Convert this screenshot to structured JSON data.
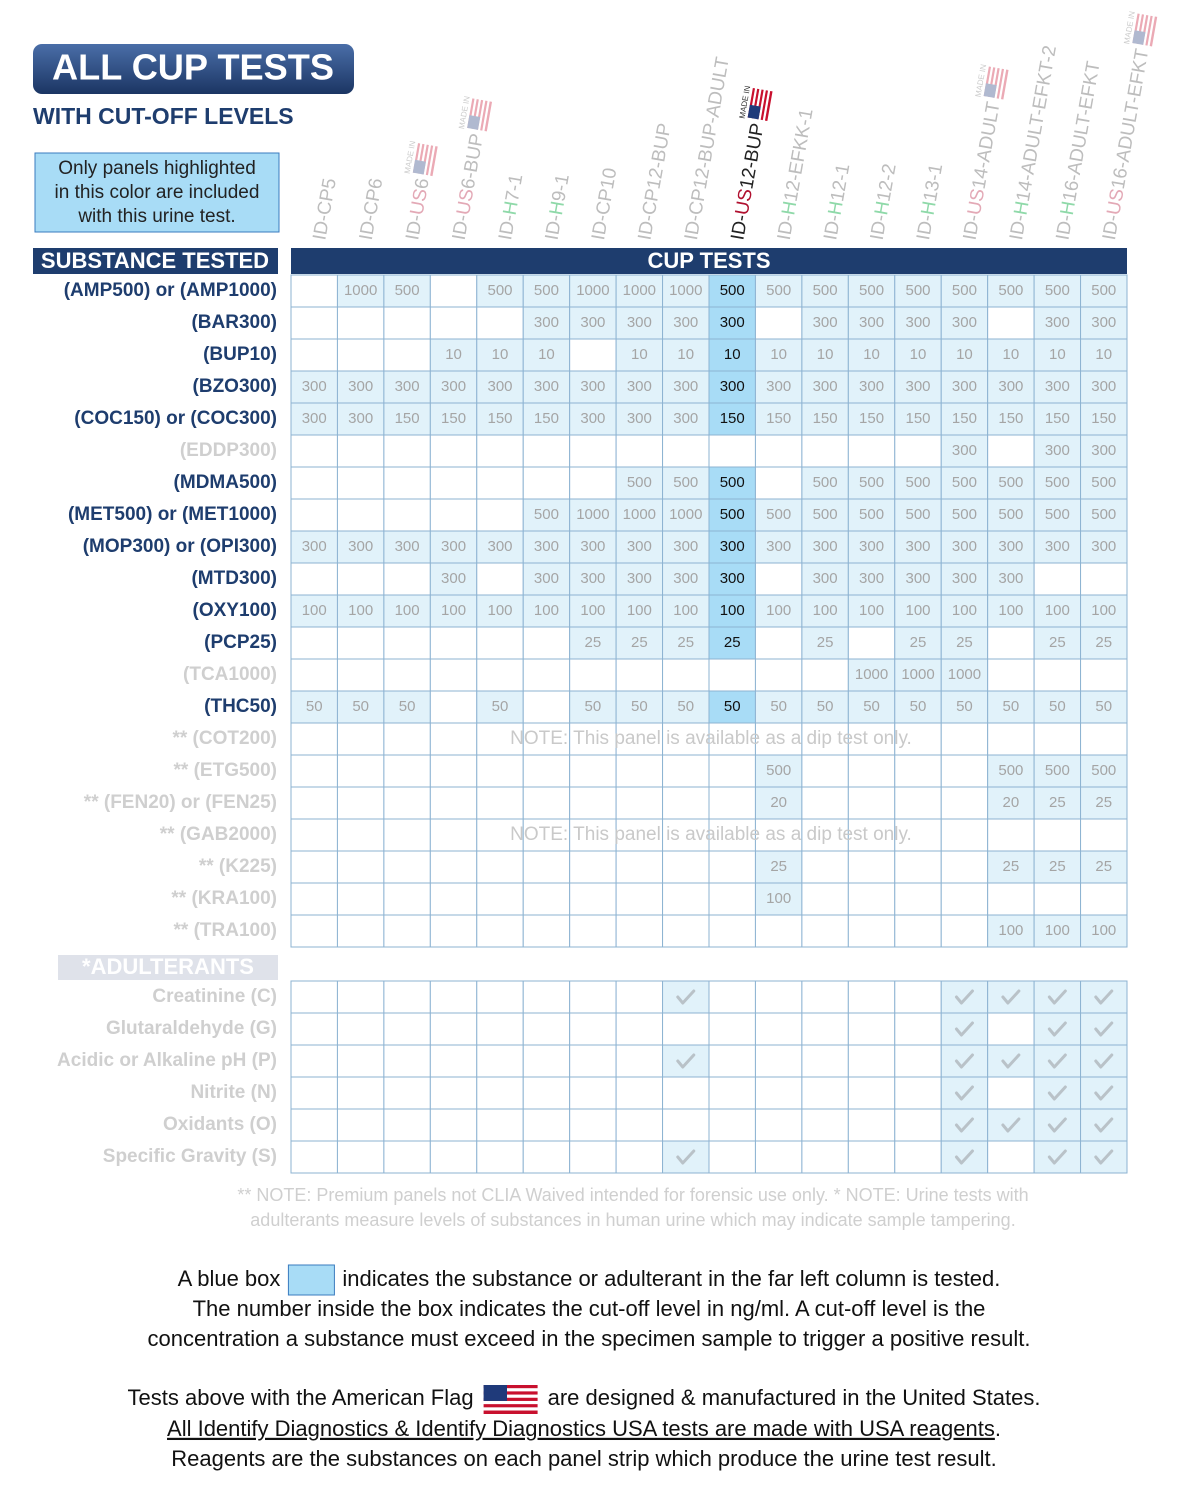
{
  "header": {
    "title": "ALL CUP TESTS",
    "subtitle": "WITH CUT-OFF LEVELS",
    "legend_lines": [
      "Only panels highlighted",
      "in this color are included",
      "with this urine test."
    ]
  },
  "table": {
    "substance_header": "SUBSTANCE TESTED",
    "cup_header": "CUP TESTS",
    "made_in_label": "MADE IN",
    "highlight_column": 9,
    "columns": [
      {
        "label": "ID-CP5"
      },
      {
        "label": "ID-CP6"
      },
      {
        "label": "ID-US6",
        "made_in": true
      },
      {
        "label": "ID-US6-BUP",
        "made_in": true
      },
      {
        "label": "ID-H7-1"
      },
      {
        "label": "ID-H9-1"
      },
      {
        "label": "ID-CP10"
      },
      {
        "label": "ID-CP12-BUP"
      },
      {
        "label": "ID-CP12-BUP-ADULT"
      },
      {
        "label": "ID-US12-BUP",
        "made_in": true
      },
      {
        "label": "ID-H12-EFKK-1"
      },
      {
        "label": "ID-H12-1"
      },
      {
        "label": "ID-H12-2"
      },
      {
        "label": "ID-H13-1"
      },
      {
        "label": "ID-US14-ADULT",
        "made_in": true
      },
      {
        "label": "ID-H14-ADULT-EFKT-2"
      },
      {
        "label": "ID-H16-ADULT-EFKT"
      },
      {
        "label": "ID-US16-ADULT-EFKT",
        "made_in": true
      }
    ],
    "rows": [
      {
        "label": "(AMP500) or (AMP1000)",
        "values": [
          null,
          1000,
          500,
          null,
          500,
          500,
          1000,
          1000,
          1000,
          500,
          500,
          500,
          500,
          500,
          500,
          500,
          500,
          500
        ]
      },
      {
        "label": "(BAR300)",
        "values": [
          null,
          null,
          null,
          null,
          null,
          300,
          300,
          300,
          300,
          300,
          null,
          300,
          300,
          300,
          300,
          null,
          300,
          300
        ]
      },
      {
        "label": "(BUP10)",
        "values": [
          null,
          null,
          null,
          10,
          10,
          10,
          null,
          10,
          10,
          10,
          10,
          10,
          10,
          10,
          10,
          10,
          10,
          10
        ]
      },
      {
        "label": "(BZO300)",
        "values": [
          300,
          300,
          300,
          300,
          300,
          300,
          300,
          300,
          300,
          300,
          300,
          300,
          300,
          300,
          300,
          300,
          300,
          300
        ]
      },
      {
        "label": "(COC150) or (COC300)",
        "values": [
          300,
          300,
          150,
          150,
          150,
          150,
          300,
          300,
          300,
          150,
          150,
          150,
          150,
          150,
          150,
          150,
          150,
          150
        ]
      },
      {
        "label": "(EDDP300)",
        "muted": true,
        "values": [
          null,
          null,
          null,
          null,
          null,
          null,
          null,
          null,
          null,
          null,
          null,
          null,
          null,
          null,
          300,
          null,
          300,
          300
        ]
      },
      {
        "label": "(MDMA500)",
        "values": [
          null,
          null,
          null,
          null,
          null,
          null,
          null,
          500,
          500,
          500,
          null,
          500,
          500,
          500,
          500,
          500,
          500,
          500
        ]
      },
      {
        "label": "(MET500) or (MET1000)",
        "values": [
          null,
          null,
          null,
          null,
          null,
          500,
          1000,
          1000,
          1000,
          500,
          500,
          500,
          500,
          500,
          500,
          500,
          500,
          500
        ]
      },
      {
        "label": "(MOP300) or (OPI300)",
        "values": [
          300,
          300,
          300,
          300,
          300,
          300,
          300,
          300,
          300,
          300,
          300,
          300,
          300,
          300,
          300,
          300,
          300,
          300
        ]
      },
      {
        "label": "(MTD300)",
        "values": [
          null,
          null,
          null,
          300,
          null,
          300,
          300,
          300,
          300,
          300,
          null,
          300,
          300,
          300,
          300,
          300,
          null,
          null
        ]
      },
      {
        "label": "(OXY100)",
        "values": [
          100,
          100,
          100,
          100,
          100,
          100,
          100,
          100,
          100,
          100,
          100,
          100,
          100,
          100,
          100,
          100,
          100,
          100
        ]
      },
      {
        "label": "(PCP25)",
        "values": [
          null,
          null,
          null,
          null,
          null,
          null,
          25,
          25,
          25,
          25,
          null,
          25,
          null,
          25,
          25,
          null,
          25,
          25
        ]
      },
      {
        "label": "(TCA1000)",
        "muted": true,
        "values": [
          null,
          null,
          null,
          null,
          null,
          null,
          null,
          null,
          null,
          null,
          null,
          null,
          1000,
          1000,
          1000,
          null,
          null,
          null
        ]
      },
      {
        "label": "(THC50)",
        "values": [
          50,
          50,
          50,
          null,
          50,
          null,
          50,
          50,
          50,
          50,
          50,
          50,
          50,
          50,
          50,
          50,
          50,
          50
        ]
      },
      {
        "label": "** (COT200)",
        "muted": true,
        "note": "NOTE: This panel is available as a dip test only."
      },
      {
        "label": "** (ETG500)",
        "muted": true,
        "values": [
          null,
          null,
          null,
          null,
          null,
          null,
          null,
          null,
          null,
          null,
          500,
          null,
          null,
          null,
          null,
          500,
          500,
          500
        ]
      },
      {
        "label": "** (FEN20) or (FEN25)",
        "muted": true,
        "values": [
          null,
          null,
          null,
          null,
          null,
          null,
          null,
          null,
          null,
          null,
          20,
          null,
          null,
          null,
          null,
          20,
          25,
          25
        ]
      },
      {
        "label": "** (GAB2000)",
        "muted": true,
        "note": "NOTE: This panel is available as a dip test only."
      },
      {
        "label": "** (K225)",
        "muted": true,
        "values": [
          null,
          null,
          null,
          null,
          null,
          null,
          null,
          null,
          null,
          null,
          25,
          null,
          null,
          null,
          null,
          25,
          25,
          25
        ]
      },
      {
        "label": "** (KRA100)",
        "muted": true,
        "values": [
          null,
          null,
          null,
          null,
          null,
          null,
          null,
          null,
          null,
          null,
          100,
          null,
          null,
          null,
          null,
          null,
          null,
          null
        ]
      },
      {
        "label": "** (TRA100)",
        "muted": true,
        "values": [
          null,
          null,
          null,
          null,
          null,
          null,
          null,
          null,
          null,
          null,
          null,
          null,
          null,
          null,
          null,
          100,
          100,
          100
        ]
      }
    ]
  },
  "adulterants": {
    "header": "*ADULTERANTS",
    "rows": [
      {
        "label": "Creatinine (C)",
        "checks": [
          false,
          false,
          false,
          false,
          false,
          false,
          false,
          false,
          true,
          false,
          false,
          false,
          false,
          false,
          true,
          true,
          true,
          true
        ]
      },
      {
        "label": "Glutaraldehyde (G)",
        "checks": [
          false,
          false,
          false,
          false,
          false,
          false,
          false,
          false,
          false,
          false,
          false,
          false,
          false,
          false,
          true,
          false,
          true,
          true
        ]
      },
      {
        "label": "Acidic or Alkaline pH (P)",
        "checks": [
          false,
          false,
          false,
          false,
          false,
          false,
          false,
          false,
          true,
          false,
          false,
          false,
          false,
          false,
          true,
          true,
          true,
          true
        ]
      },
      {
        "label": "Nitrite (N)",
        "checks": [
          false,
          false,
          false,
          false,
          false,
          false,
          false,
          false,
          false,
          false,
          false,
          false,
          false,
          false,
          true,
          false,
          true,
          true
        ]
      },
      {
        "label": "Oxidants (O)",
        "checks": [
          false,
          false,
          false,
          false,
          false,
          false,
          false,
          false,
          false,
          false,
          false,
          false,
          false,
          false,
          true,
          true,
          true,
          true
        ]
      },
      {
        "label": "Specific Gravity (S)",
        "checks": [
          false,
          false,
          false,
          false,
          false,
          false,
          false,
          false,
          true,
          false,
          false,
          false,
          false,
          false,
          true,
          false,
          true,
          true
        ]
      }
    ]
  },
  "footnotes": [
    "** NOTE: Premium panels not CLIA Waived intended for forensic use only.    * NOTE: Urine tests with",
    "adulterants measure levels of substances in human urine which may indicate sample tampering."
  ],
  "explanation": {
    "before_box": "A blue box",
    "after_box": "indicates the substance or adulterant in the far left column is tested.",
    "lines": [
      "The number inside the box indicates the cut-off level in ng/ml. A cut-off level is the",
      "concentration a substance must exceed in the specimen sample to trigger a positive result."
    ]
  },
  "flag_note": {
    "before_flag": "Tests above with the American Flag",
    "after_flag": "are designed & manufactured in the United States.",
    "underlined": "All Identify Diagnostics & Identify Diagnostics USA tests are made with USA reagents",
    "underlined_end": ".",
    "last": "Reagents are the substances on each panel strip which produce the urine test result."
  }
}
